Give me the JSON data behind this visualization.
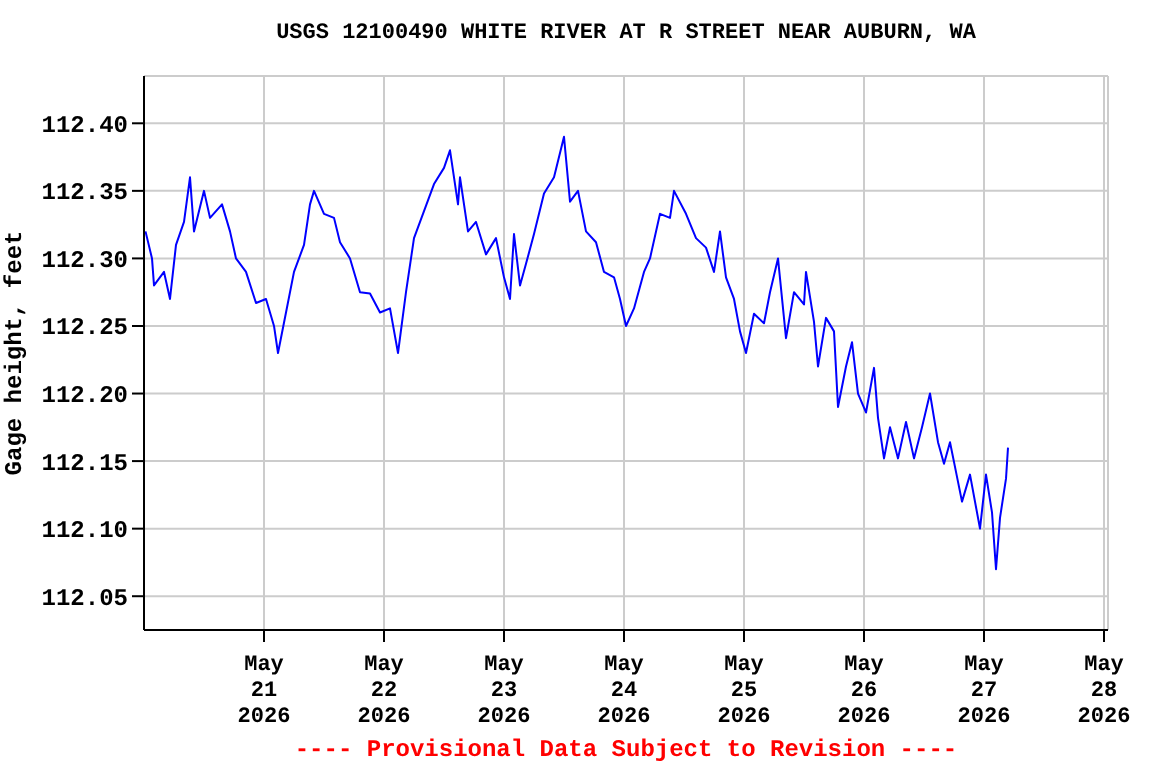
{
  "chart_data": {
    "type": "line",
    "title": "USGS 12100490 WHITE RIVER AT R STREET NEAR AUBURN, WA",
    "ylabel": "Gage height, feet",
    "annotations": [
      "---- Provisional Data Subject to Revision ----"
    ],
    "xlim": [
      "2026-05-20T00:00",
      "2026-05-28T00:48"
    ],
    "ylim": [
      112.025,
      112.435
    ],
    "xticks": [
      {
        "value": "2026-05-21",
        "label": "May\n21\n2026"
      },
      {
        "value": "2026-05-22",
        "label": "May\n22\n2026"
      },
      {
        "value": "2026-05-23",
        "label": "May\n23\n2026"
      },
      {
        "value": "2026-05-24",
        "label": "May\n24\n2026"
      },
      {
        "value": "2026-05-25",
        "label": "May\n25\n2026"
      },
      {
        "value": "2026-05-26",
        "label": "May\n26\n2026"
      },
      {
        "value": "2026-05-27",
        "label": "May\n27\n2026"
      },
      {
        "value": "2026-05-28",
        "label": "May\n28\n2026"
      }
    ],
    "yticks": [
      {
        "value": 112.05,
        "label": "112.05"
      },
      {
        "value": 112.1,
        "label": "112.10"
      },
      {
        "value": 112.15,
        "label": "112.15"
      },
      {
        "value": 112.2,
        "label": "112.20"
      },
      {
        "value": 112.25,
        "label": "112.25"
      },
      {
        "value": 112.3,
        "label": "112.30"
      },
      {
        "value": 112.35,
        "label": "112.35"
      },
      {
        "value": 112.4,
        "label": "112.40"
      }
    ],
    "grid": true,
    "legend": false,
    "marker": "none",
    "line_style": "solid",
    "series": [
      {
        "color": "#0000ff",
        "x": [
          "2026-05-20T00:18",
          "2026-05-20T01:36",
          "2026-05-20T02:00",
          "2026-05-20T04:00",
          "2026-05-20T05:12",
          "2026-05-20T06:24",
          "2026-05-20T08:00",
          "2026-05-20T09:12",
          "2026-05-20T10:00",
          "2026-05-20T12:00",
          "2026-05-20T13:12",
          "2026-05-20T15:36",
          "2026-05-20T17:12",
          "2026-05-20T18:24",
          "2026-05-20T20:24",
          "2026-05-20T22:24",
          "2026-05-21T00:24",
          "2026-05-21T02:00",
          "2026-05-21T02:48",
          "2026-05-21T04:24",
          "2026-05-21T06:00",
          "2026-05-21T08:00",
          "2026-05-21T09:12",
          "2026-05-21T10:00",
          "2026-05-21T12:00",
          "2026-05-21T14:00",
          "2026-05-21T15:12",
          "2026-05-21T17:12",
          "2026-05-21T19:12",
          "2026-05-21T21:12",
          "2026-05-21T23:12",
          "2026-05-22T01:12",
          "2026-05-22T02:48",
          "2026-05-22T04:24",
          "2026-05-22T06:00",
          "2026-05-22T08:00",
          "2026-05-22T10:00",
          "2026-05-22T12:00",
          "2026-05-22T13:12",
          "2026-05-22T14:48",
          "2026-05-22T15:12",
          "2026-05-22T16:48",
          "2026-05-22T18:24",
          "2026-05-22T20:24",
          "2026-05-22T22:24",
          "2026-05-23T00:00",
          "2026-05-23T01:12",
          "2026-05-23T02:00",
          "2026-05-23T03:12",
          "2026-05-23T04:24",
          "2026-05-23T06:00",
          "2026-05-23T08:00",
          "2026-05-23T10:00",
          "2026-05-23T12:00",
          "2026-05-23T13:12",
          "2026-05-23T14:48",
          "2026-05-23T16:24",
          "2026-05-23T18:24",
          "2026-05-23T20:00",
          "2026-05-23T22:00",
          "2026-05-23T23:12",
          "2026-05-24T00:24",
          "2026-05-24T02:00",
          "2026-05-24T04:00",
          "2026-05-24T05:12",
          "2026-05-24T07:12",
          "2026-05-24T09:12",
          "2026-05-24T10:00",
          "2026-05-24T12:24",
          "2026-05-24T14:24",
          "2026-05-24T16:24",
          "2026-05-24T18:00",
          "2026-05-24T19:12",
          "2026-05-24T20:24",
          "2026-05-24T22:00",
          "2026-05-24T23:12",
          "2026-05-25T00:24",
          "2026-05-25T02:00",
          "2026-05-25T04:00",
          "2026-05-25T05:12",
          "2026-05-25T06:48",
          "2026-05-25T08:24",
          "2026-05-25T10:00",
          "2026-05-25T12:00",
          "2026-05-25T12:24",
          "2026-05-25T14:00",
          "2026-05-25T14:48",
          "2026-05-25T16:24",
          "2026-05-25T18:00",
          "2026-05-25T18:48",
          "2026-05-25T20:24",
          "2026-05-25T21:36",
          "2026-05-25T22:48",
          "2026-05-26T00:24",
          "2026-05-26T02:00",
          "2026-05-26T02:48",
          "2026-05-26T04:00",
          "2026-05-26T05:12",
          "2026-05-26T06:48",
          "2026-05-26T08:24",
          "2026-05-26T10:00",
          "2026-05-26T11:36",
          "2026-05-26T13:12",
          "2026-05-26T14:48",
          "2026-05-26T16:00",
          "2026-05-26T17:12",
          "2026-05-26T18:24",
          "2026-05-26T19:36",
          "2026-05-26T21:12",
          "2026-05-26T23:12",
          "2026-05-27T00:24",
          "2026-05-27T01:36",
          "2026-05-27T02:24",
          "2026-05-27T03:12",
          "2026-05-27T04:24",
          "2026-05-27T04:48"
        ],
        "values": [
          112.32,
          112.3,
          112.28,
          112.29,
          112.27,
          112.31,
          112.327,
          112.36,
          112.32,
          112.35,
          112.33,
          112.34,
          112.32,
          112.3,
          112.29,
          112.267,
          112.27,
          112.25,
          112.23,
          112.26,
          112.29,
          112.31,
          112.34,
          112.35,
          112.333,
          112.33,
          112.312,
          112.3,
          112.275,
          112.274,
          112.26,
          112.263,
          112.23,
          112.275,
          112.315,
          112.335,
          112.355,
          112.367,
          112.38,
          112.34,
          112.36,
          112.32,
          112.327,
          112.303,
          112.315,
          112.286,
          112.27,
          112.318,
          112.28,
          112.296,
          112.318,
          112.348,
          112.36,
          112.39,
          112.342,
          112.35,
          112.32,
          112.312,
          112.29,
          112.286,
          112.27,
          112.25,
          112.263,
          112.29,
          112.3,
          112.333,
          112.33,
          112.35,
          112.333,
          112.315,
          112.308,
          112.29,
          112.32,
          112.286,
          112.27,
          112.246,
          112.23,
          112.259,
          112.252,
          112.275,
          112.3,
          112.241,
          112.275,
          112.266,
          112.29,
          112.253,
          112.22,
          112.256,
          112.246,
          112.19,
          112.22,
          112.238,
          112.2,
          112.186,
          112.219,
          112.182,
          112.152,
          112.175,
          112.152,
          112.179,
          112.152,
          112.175,
          112.2,
          112.164,
          112.148,
          112.164,
          112.142,
          112.12,
          112.14,
          112.1,
          112.14,
          112.112,
          112.07,
          112.108,
          112.137,
          112.16
        ]
      }
    ]
  }
}
